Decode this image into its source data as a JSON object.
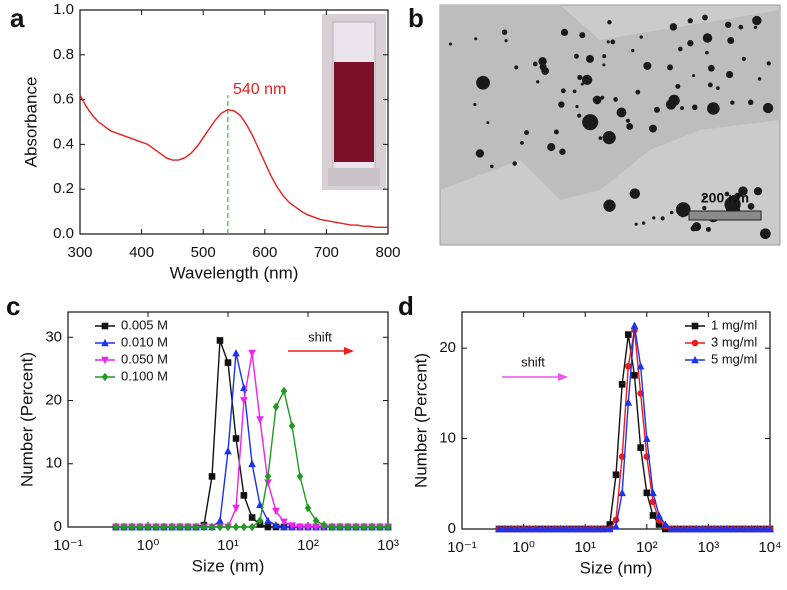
{
  "chart_data": [
    {
      "type": "line",
      "panel_label": "a",
      "x_label": "Wavelength (nm)",
      "y_label": "Absorbance",
      "annotation": "540 nm",
      "ref_x": 540,
      "ref_color": "#22cc22",
      "xlim": [
        300,
        800
      ],
      "ylim": [
        0,
        1
      ],
      "xticks": [
        300,
        400,
        500,
        600,
        700,
        800
      ],
      "yticks": [
        {
          "value": 0,
          "label": "0.0"
        },
        0.2,
        0.4,
        0.6,
        0.8,
        {
          "value": 1,
          "label": "1.0"
        }
      ],
      "x": [
        300,
        310,
        320,
        330,
        340,
        350,
        360,
        370,
        380,
        390,
        400,
        410,
        420,
        430,
        440,
        450,
        460,
        470,
        480,
        490,
        500,
        510,
        520,
        530,
        540,
        550,
        560,
        570,
        580,
        590,
        600,
        610,
        620,
        630,
        640,
        650,
        660,
        670,
        680,
        690,
        700,
        710,
        720,
        730,
        740,
        750,
        760,
        770,
        780,
        790,
        800
      ],
      "series": [
        {
          "color": "#e82020",
          "values": [
            0.62,
            0.57,
            0.53,
            0.5,
            0.48,
            0.46,
            0.45,
            0.44,
            0.43,
            0.42,
            0.41,
            0.4,
            0.38,
            0.36,
            0.34,
            0.33,
            0.33,
            0.34,
            0.36,
            0.39,
            0.43,
            0.47,
            0.51,
            0.54,
            0.555,
            0.55,
            0.53,
            0.49,
            0.44,
            0.38,
            0.32,
            0.26,
            0.21,
            0.17,
            0.14,
            0.12,
            0.1,
            0.085,
            0.075,
            0.065,
            0.06,
            0.055,
            0.05,
            0.045,
            0.04,
            0.04,
            0.035,
            0.035,
            0.03,
            0.03,
            0.03
          ]
        }
      ]
    },
    {
      "type": "line",
      "panel_label": "c",
      "x_label": "Size (nm)",
      "y_label": "Number (Percent)",
      "xscale": "log",
      "annotation": "shift",
      "xlim": [
        0.1,
        1000
      ],
      "ylim": [
        0,
        34
      ],
      "xticks": [
        {
          "value": 0.1,
          "label": "10⁻¹"
        },
        {
          "value": 1,
          "label": "10⁰"
        },
        {
          "value": 10,
          "label": "10¹"
        },
        {
          "value": 100,
          "label": "10²"
        },
        {
          "value": 1000,
          "label": "10³"
        }
      ],
      "yticks": [
        0,
        10,
        20,
        30
      ],
      "x": [
        0.398,
        0.501,
        0.631,
        0.794,
        1,
        1.26,
        1.58,
        2,
        2.51,
        3.16,
        3.98,
        5.01,
        6.31,
        7.94,
        10,
        12.6,
        15.8,
        20,
        25.1,
        31.6,
        39.8,
        50.1,
        63.1,
        79.4,
        100,
        126,
        158,
        200,
        251,
        316,
        398,
        501,
        631,
        794,
        1000
      ],
      "series": [
        {
          "name": "0.005 M",
          "color": "#111111",
          "marker": "square",
          "values": [
            0,
            0,
            0,
            0,
            0,
            0,
            0,
            0,
            0,
            0,
            0,
            0.3,
            8,
            29.5,
            26,
            14,
            5,
            1.5,
            0.4,
            0,
            0,
            0,
            0,
            0,
            0,
            0,
            0,
            0,
            0,
            0,
            0,
            0,
            0,
            0,
            0
          ]
        },
        {
          "name": "0.010 M",
          "color": "#1a33ee",
          "marker": "triangle-up",
          "values": [
            0,
            0,
            0,
            0,
            0,
            0,
            0,
            0,
            0,
            0,
            0,
            0,
            0,
            1,
            12,
            27.5,
            22,
            10,
            3.5,
            1,
            0.3,
            0,
            0,
            0,
            0,
            0,
            0,
            0,
            0,
            0,
            0,
            0,
            0,
            0,
            0
          ]
        },
        {
          "name": "0.050 M",
          "color": "#ee22ee",
          "marker": "triangle-down",
          "values": [
            0,
            0,
            0,
            0,
            0,
            0,
            0,
            0,
            0,
            0,
            0,
            0,
            0,
            0,
            0,
            3,
            20,
            27.5,
            17,
            7,
            2.5,
            0.8,
            0.2,
            0,
            0,
            0,
            0,
            0,
            0,
            0,
            0,
            0,
            0,
            0,
            0
          ]
        },
        {
          "name": "0.100 M",
          "color": "#229922",
          "marker": "diamond",
          "values": [
            0,
            0,
            0,
            0,
            0,
            0,
            0,
            0,
            0,
            0,
            0,
            0,
            0,
            0,
            0,
            0,
            0,
            0,
            1,
            8,
            19,
            21.5,
            16,
            8,
            3,
            1,
            0.3,
            0,
            0,
            0,
            0,
            0,
            0,
            0,
            0
          ]
        }
      ]
    },
    {
      "type": "line",
      "panel_label": "d",
      "x_label": "Size (nm)",
      "y_label": "Number (Percent)",
      "xscale": "log",
      "annotation": "shift",
      "xlim": [
        0.1,
        10000
      ],
      "ylim": [
        0,
        24
      ],
      "xticks": [
        {
          "value": 0.1,
          "label": "10⁻¹"
        },
        {
          "value": 1,
          "label": "10⁰"
        },
        {
          "value": 10,
          "label": "10¹"
        },
        {
          "value": 100,
          "label": "10²"
        },
        {
          "value": 1000,
          "label": "10³"
        },
        {
          "value": 10000,
          "label": "10⁴"
        }
      ],
      "yticks": [
        0,
        10,
        20
      ],
      "x": [
        0.398,
        0.501,
        0.631,
        0.794,
        1,
        1.26,
        1.58,
        2,
        2.51,
        3.16,
        3.98,
        5.01,
        6.31,
        7.94,
        10,
        12.6,
        15.8,
        20,
        25.1,
        31.6,
        39.8,
        50.1,
        63.1,
        79.4,
        100,
        126,
        158,
        200,
        251,
        316,
        398,
        501,
        631,
        794,
        1000,
        1260,
        1580,
        2000,
        2510,
        3160,
        3980,
        5010,
        6310,
        7940,
        10000
      ],
      "series": [
        {
          "name": "1 mg/ml",
          "color": "#111111",
          "marker": "square",
          "values": [
            0,
            0,
            0,
            0,
            0,
            0,
            0,
            0,
            0,
            0,
            0,
            0,
            0,
            0,
            0,
            0,
            0,
            0,
            0.5,
            6,
            16,
            21.5,
            17,
            9,
            4,
            1.5,
            0.5,
            0,
            0,
            0,
            0,
            0,
            0,
            0,
            0,
            0,
            0,
            0,
            0,
            0,
            0,
            0,
            0,
            0,
            0
          ]
        },
        {
          "name": "3 mg/ml",
          "color": "#ee1a1a",
          "marker": "circle",
          "values": [
            0,
            0,
            0,
            0,
            0,
            0,
            0,
            0,
            0,
            0,
            0,
            0,
            0,
            0,
            0,
            0,
            0,
            0,
            0,
            1,
            8,
            18,
            22,
            15,
            8,
            3,
            1,
            0.3,
            0,
            0,
            0,
            0,
            0,
            0,
            0,
            0,
            0,
            0,
            0,
            0,
            0,
            0,
            0,
            0,
            0
          ]
        },
        {
          "name": "5 mg/ml",
          "color": "#1a33ee",
          "marker": "triangle-up",
          "values": [
            0,
            0,
            0,
            0,
            0,
            0,
            0,
            0,
            0,
            0,
            0,
            0,
            0,
            0,
            0,
            0,
            0,
            0,
            0,
            0.3,
            4,
            14,
            22.5,
            18,
            10,
            4,
            1.5,
            0.5,
            0,
            0,
            0,
            0,
            0,
            0,
            0,
            0,
            0,
            0,
            0,
            0,
            0,
            0,
            0,
            0,
            0
          ]
        }
      ]
    }
  ],
  "image_panel": {
    "panel_label": "b",
    "scale_bar_label": "200 nm"
  }
}
